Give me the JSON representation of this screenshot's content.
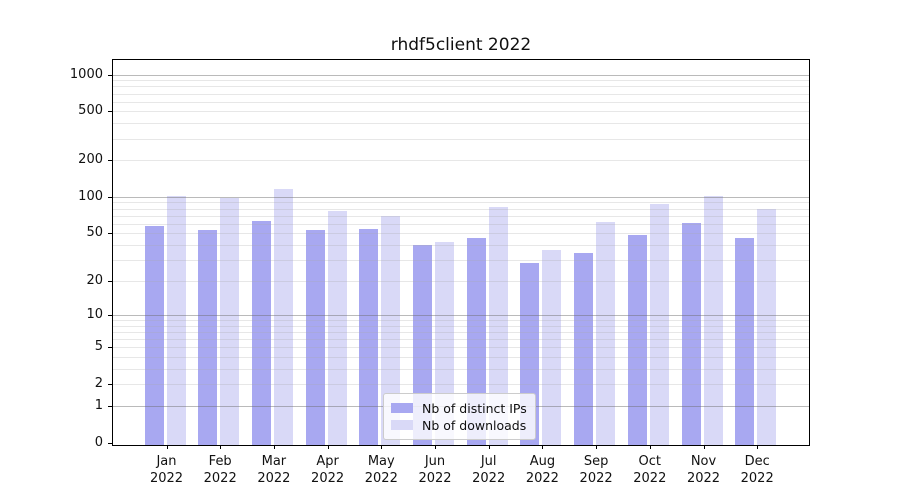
{
  "title": "rhdf5client 2022",
  "legend": {
    "items": [
      {
        "label": "Nb of distinct IPs",
        "color": "#a8a8f1"
      },
      {
        "label": "Nb of downloads",
        "color": "#d9d9f7"
      }
    ]
  },
  "chart_data": {
    "type": "bar",
    "title": "rhdf5client 2022",
    "categories": [
      "Jan",
      "Feb",
      "Mar",
      "Apr",
      "May",
      "Jun",
      "Jul",
      "Aug",
      "Sep",
      "Oct",
      "Nov",
      "Dec"
    ],
    "year_label": "2022",
    "series": [
      {
        "name": "Nb of distinct IPs",
        "color": "#a8a8f1",
        "values": [
          57,
          53,
          63,
          53,
          54,
          40,
          46,
          28,
          34,
          48,
          61,
          46
        ]
      },
      {
        "name": "Nb of downloads",
        "color": "#d9d9f7",
        "values": [
          102,
          97,
          117,
          77,
          70,
          42,
          83,
          36,
          62,
          87,
          101,
          79
        ]
      }
    ],
    "xlabel": "",
    "ylabel": "",
    "y_scale": "log10(value+1)",
    "y_ticks": [
      0,
      1,
      2,
      5,
      10,
      20,
      50,
      100,
      200,
      500,
      1000
    ],
    "ylim": [
      0,
      1300
    ],
    "grid": "horizontal major and log-minor lines, drawn over bars",
    "legend_position": "lower center inside plot"
  }
}
